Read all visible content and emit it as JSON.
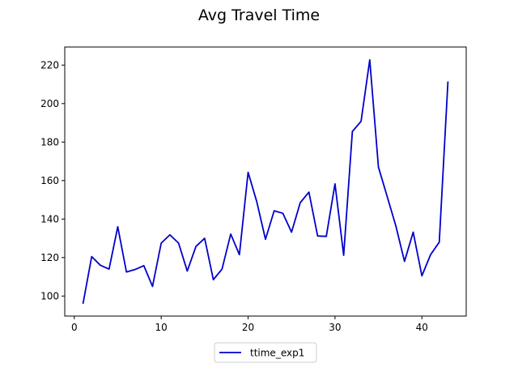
{
  "chart_data": {
    "type": "line",
    "title": "Avg Travel Time",
    "xlabel": "",
    "ylabel": "",
    "xlim": [
      -1.1,
      45.1
    ],
    "ylim": [
      89.6,
      229.4
    ],
    "xticks": [
      0,
      10,
      20,
      30,
      40
    ],
    "yticks": [
      100,
      120,
      140,
      160,
      180,
      200,
      220
    ],
    "grid": false,
    "legend_position": "bottom-center, outside plot",
    "series": [
      {
        "name": "ttime_exp1",
        "color": "#0000cc",
        "x": [
          1,
          2,
          3,
          4,
          5,
          6,
          7,
          8,
          9,
          10,
          11,
          12,
          13,
          14,
          15,
          16,
          17,
          18,
          19,
          20,
          21,
          22,
          23,
          24,
          25,
          26,
          27,
          28,
          29,
          30,
          31,
          32,
          33,
          34,
          35,
          36,
          37,
          38,
          39,
          40,
          41,
          42,
          43
        ],
        "y": [
          96,
          120.5,
          116,
          114,
          136,
          112.5,
          113.8,
          115.8,
          105,
          127.5,
          131.8,
          127.5,
          113,
          125.8,
          130,
          108.5,
          114,
          132.2,
          121.5,
          164.3,
          149,
          129.5,
          144.3,
          143,
          133.2,
          148.5,
          154,
          131.2,
          131,
          158.3,
          121.2,
          185.5,
          190.8,
          222.7,
          167,
          151.8,
          136.5,
          118,
          133.2,
          110.5,
          121.5,
          128,
          211.5
        ]
      }
    ]
  }
}
